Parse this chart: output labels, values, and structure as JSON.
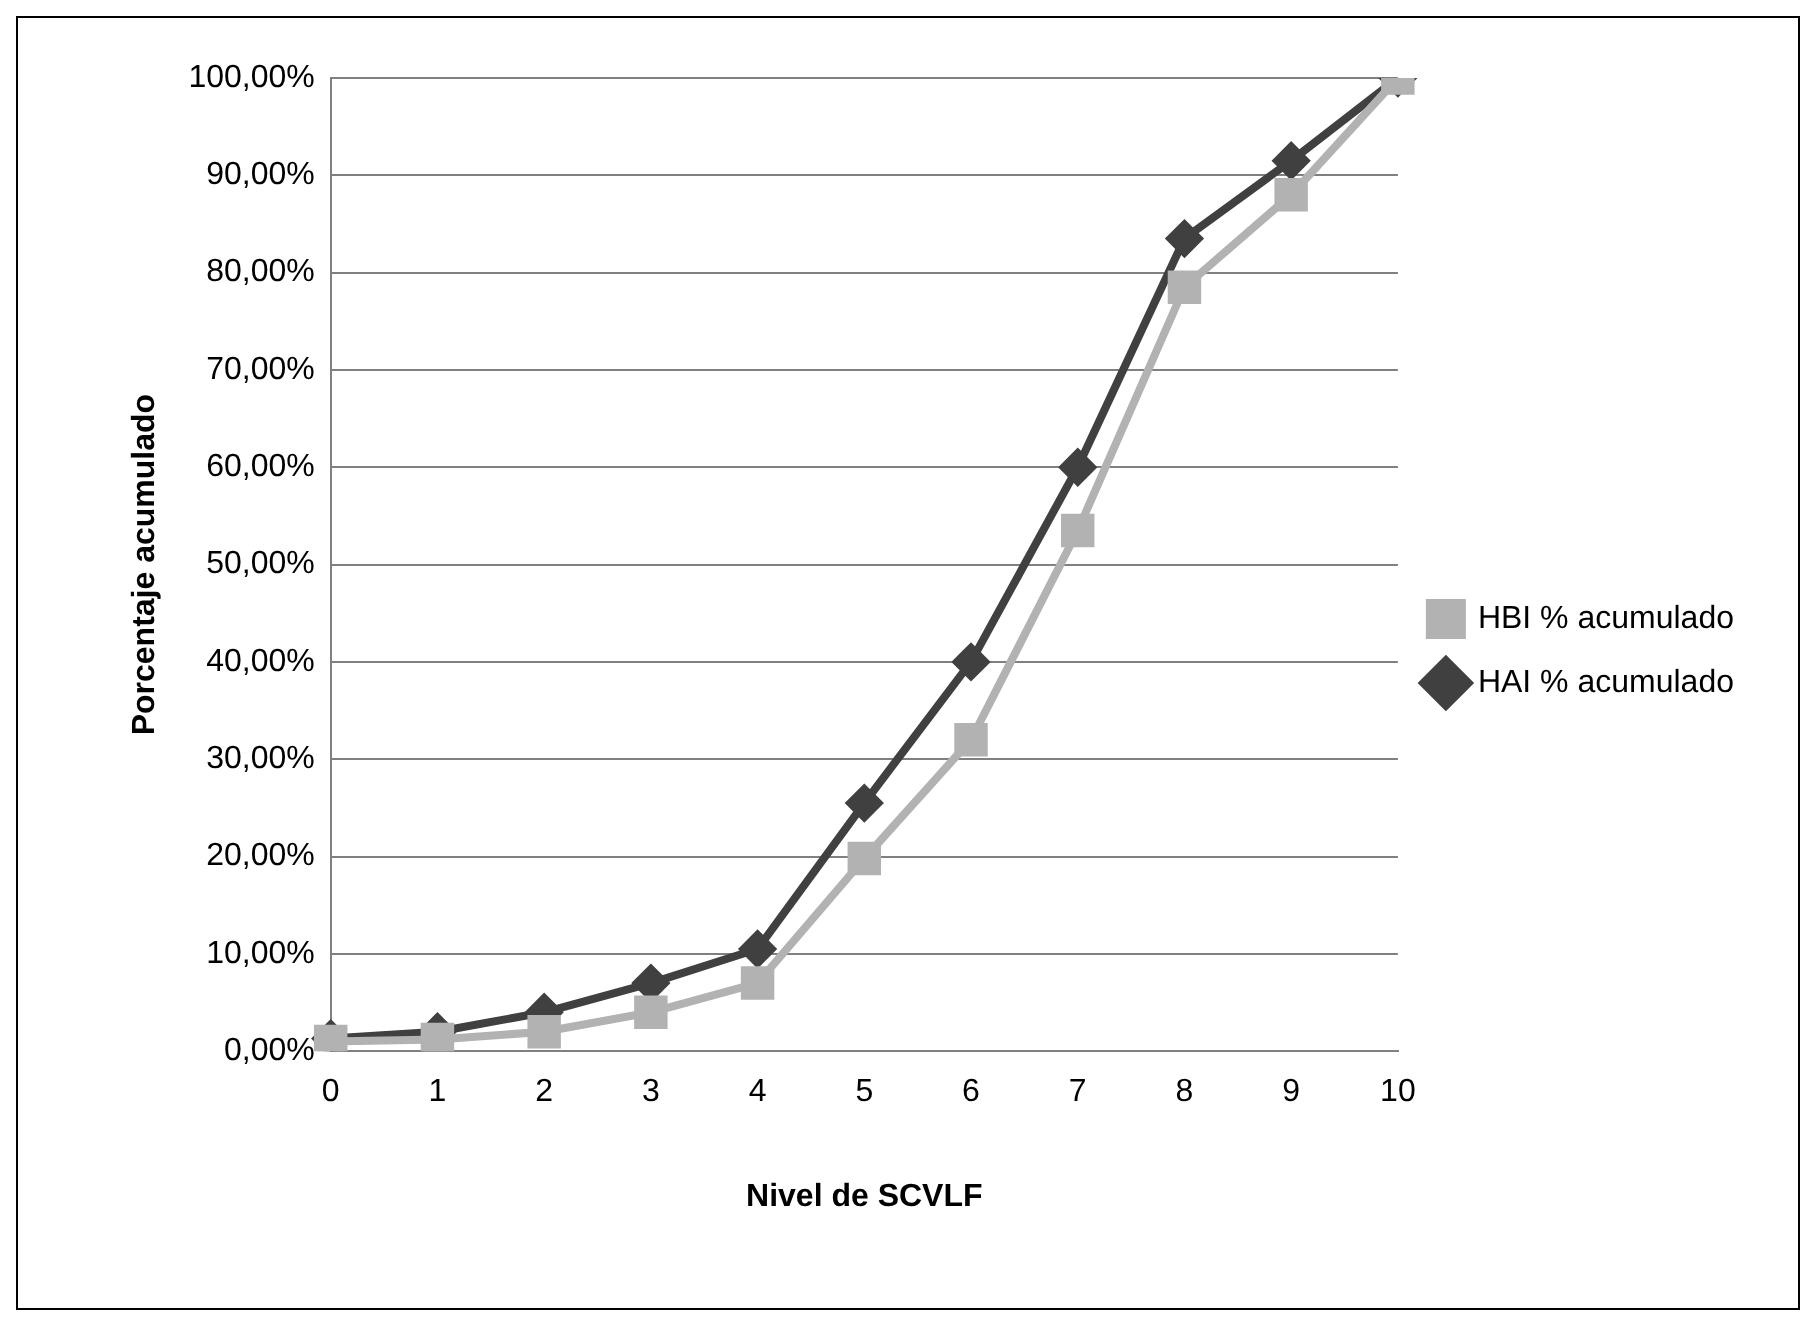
{
  "chart_data": {
    "type": "line",
    "xlabel": "Nivel de SCVLF",
    "ylabel": "Porcentaje acumulado",
    "categories": [
      "0",
      "1",
      "2",
      "3",
      "4",
      "5",
      "6",
      "7",
      "8",
      "9",
      "10"
    ],
    "series": [
      {
        "name": "HAI % acumulado",
        "color": "#404040",
        "marker": "diamond",
        "values": [
          1.3,
          2,
          4,
          7,
          10.5,
          25.5,
          40,
          60,
          83.5,
          91.5,
          100
        ]
      },
      {
        "name": "HBI % acumulado",
        "color": "#b2b2b2",
        "marker": "square",
        "values": [
          1,
          1.2,
          2,
          4,
          7,
          19.8,
          32,
          53.5,
          78.5,
          88,
          100
        ]
      }
    ],
    "ylim": [
      0,
      100
    ],
    "yticks": [
      {
        "value": 0,
        "label": "0,00%"
      },
      {
        "value": 10,
        "label": "10,00%"
      },
      {
        "value": 20,
        "label": "20,00%"
      },
      {
        "value": 30,
        "label": "30,00%"
      },
      {
        "value": 40,
        "label": "40,00%"
      },
      {
        "value": 50,
        "label": "50,00%"
      },
      {
        "value": 60,
        "label": "60,00%"
      },
      {
        "value": 70,
        "label": "70,00%"
      },
      {
        "value": 80,
        "label": "80,00%"
      },
      {
        "value": 90,
        "label": "90,00%"
      },
      {
        "value": 100,
        "label": "100,00%"
      }
    ],
    "grid": "y",
    "legend": "right",
    "line_style": "solid"
  }
}
